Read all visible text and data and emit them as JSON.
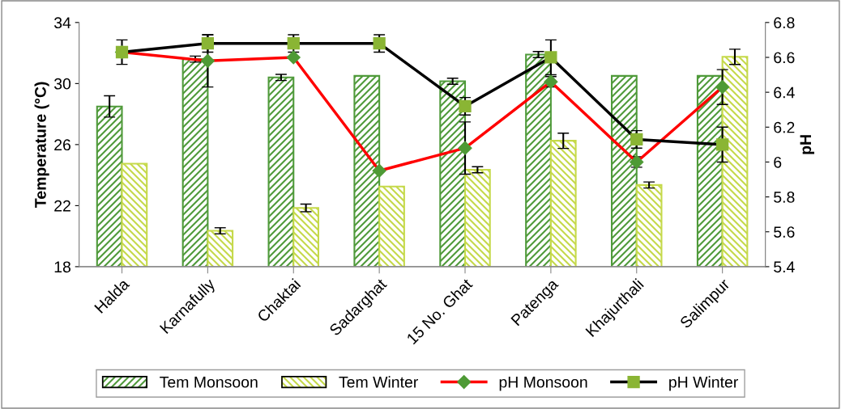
{
  "chart_data": {
    "type": "bar",
    "ylabel": "Temperature (°C)",
    "y2label": "pH",
    "categories": [
      "Halda",
      "Karnafully",
      "Chaktai",
      "Sadarghat",
      "15 No. Ghat",
      "Patenga",
      "Khajurthali",
      "Salimpur"
    ],
    "series": [
      {
        "name": "Tem Monsoon",
        "color": "#4f9a3a",
        "values": [
          28.5,
          31.6,
          30.4,
          30.5,
          30.15,
          31.9,
          30.5,
          30.5
        ],
        "errors": [
          0.7,
          0.2,
          0.2,
          null,
          0.2,
          0.2,
          null,
          null
        ]
      },
      {
        "name": "Tem Winter",
        "color": "#c5d94a",
        "values": [
          24.75,
          20.35,
          21.85,
          23.25,
          24.35,
          26.25,
          23.35,
          31.75
        ],
        "errors": [
          null,
          0.2,
          0.25,
          null,
          0.2,
          0.5,
          0.2,
          0.5
        ]
      },
      {
        "name": "pH Monsoon",
        "type": "line",
        "axis": "y2",
        "color": "#ff0000",
        "marker": "diamond",
        "values": [
          6.63,
          6.58,
          6.6,
          5.95,
          6.08,
          6.46,
          6.0,
          6.43
        ],
        "errors": [
          null,
          0.15,
          null,
          null,
          0.15,
          0.03,
          0.03,
          0.1
        ]
      },
      {
        "name": "pH Winter",
        "type": "line",
        "axis": "y2",
        "color": "#000000",
        "marker": "square",
        "values": [
          6.63,
          6.68,
          6.68,
          6.68,
          6.32,
          6.6,
          6.13,
          6.1
        ],
        "errors": [
          0.07,
          0.05,
          0.05,
          0.05,
          0.05,
          0.1,
          0.05,
          0.1
        ]
      }
    ],
    "ylim": [
      18,
      34
    ],
    "yticks": [
      18,
      22,
      26,
      30,
      34
    ],
    "y2lim": [
      5.4,
      6.8
    ],
    "y2ticks": [
      5.4,
      5.6,
      5.8,
      6,
      6.2,
      6.4,
      6.6,
      6.8
    ],
    "grid": false,
    "legend": "bottom"
  }
}
